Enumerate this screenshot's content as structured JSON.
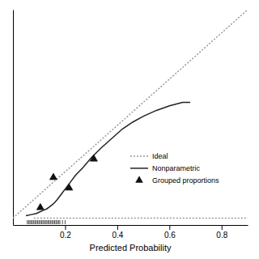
{
  "chart_data": {
    "type": "line",
    "xlabel": "Predicted Probability",
    "xlim": [
      0.0,
      0.9
    ],
    "ylim": [
      -0.03,
      0.9
    ],
    "xticks": [
      0.2,
      0.4,
      0.6,
      0.8
    ],
    "tick_labels": "x",
    "legend": "right",
    "series": [
      {
        "name": "Ideal",
        "type": "line",
        "color": "#999999",
        "line_style": "dotted",
        "x": [
          0.0,
          0.9
        ],
        "values": [
          0.0,
          0.9
        ]
      },
      {
        "name": "Nonparametric",
        "type": "line",
        "color": "#222222",
        "line_style": "solid",
        "x": [
          0.05,
          0.07,
          0.09,
          0.1,
          0.11,
          0.12,
          0.13,
          0.14,
          0.15,
          0.16,
          0.17,
          0.18,
          0.19,
          0.2,
          0.22,
          0.24,
          0.27,
          0.3,
          0.34,
          0.38,
          0.42,
          0.46,
          0.5,
          0.55,
          0.6,
          0.65,
          0.68
        ],
        "values": [
          0.01,
          0.015,
          0.02,
          0.025,
          0.03,
          0.035,
          0.04,
          0.048,
          0.057,
          0.067,
          0.08,
          0.095,
          0.11,
          0.125,
          0.155,
          0.185,
          0.22,
          0.26,
          0.305,
          0.345,
          0.385,
          0.415,
          0.44,
          0.465,
          0.485,
          0.5,
          0.5
        ]
      },
      {
        "name": "Grouped proportions",
        "type": "scatter",
        "color": "#111111",
        "marker": "triangle",
        "x": [
          0.105,
          0.155,
          0.215,
          0.31
        ],
        "values": [
          0.045,
          0.175,
          0.13,
          0.255
        ]
      }
    ],
    "reference_line": {
      "x": [
        0.08,
        0.9
      ],
      "values": [
        0.0,
        0.0
      ],
      "color": "#999999",
      "line_style": "dotted"
    },
    "rug_x": [
      0.055,
      0.06,
      0.065,
      0.07,
      0.075,
      0.08,
      0.085,
      0.09,
      0.095,
      0.1,
      0.105,
      0.11,
      0.115,
      0.12,
      0.125,
      0.13,
      0.135,
      0.14,
      0.145,
      0.15,
      0.155,
      0.16,
      0.165,
      0.17,
      0.175,
      0.18,
      0.19,
      0.2
    ],
    "rug_color": "#222222"
  }
}
